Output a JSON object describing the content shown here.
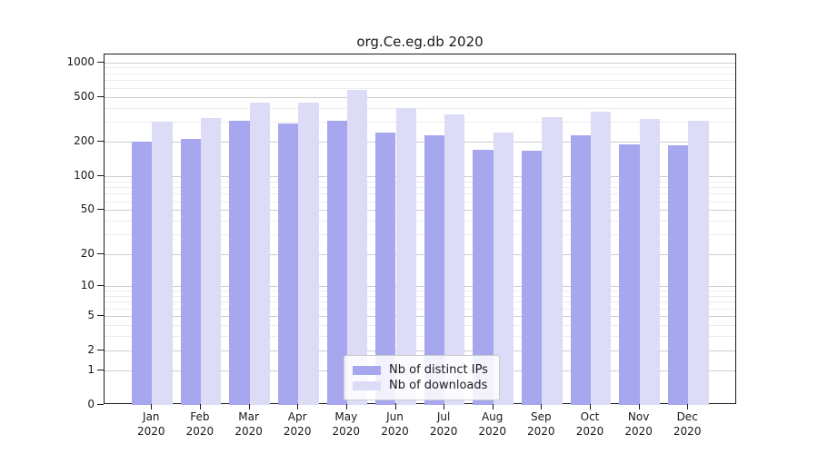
{
  "chart_data": {
    "type": "bar",
    "title": "org.Ce.eg.db 2020",
    "categories": [
      "Jan 2020",
      "Feb 2020",
      "Mar 2020",
      "Apr 2020",
      "May 2020",
      "Jun 2020",
      "Jul 2020",
      "Aug 2020",
      "Sep 2020",
      "Oct 2020",
      "Nov 2020",
      "Dec 2020"
    ],
    "series": [
      {
        "name": "Nb of distinct IPs",
        "color": "#a7a7f0",
        "values": [
          200,
          213,
          308,
          291,
          309,
          244,
          229,
          171,
          167,
          228,
          191,
          186
        ]
      },
      {
        "name": "Nb of downloads",
        "color": "#dcdcf7",
        "values": [
          300,
          326,
          443,
          443,
          576,
          401,
          349,
          242,
          328,
          367,
          319,
          309
        ]
      }
    ],
    "y_scale": "log1p",
    "ylim": [
      0,
      1172
    ],
    "y_ticks": [
      0,
      1,
      2,
      5,
      10,
      20,
      50,
      100,
      200,
      500,
      1000
    ],
    "y_minor_gridlines": [
      3,
      4,
      6,
      7,
      8,
      9,
      30,
      40,
      60,
      70,
      80,
      90,
      300,
      400,
      600,
      700,
      800,
      900
    ],
    "grid": true,
    "legend_position": "lower center"
  },
  "style": {
    "major_grid_color": "#cdcdcd",
    "minor_grid_color": "#ececec",
    "axis_color": "#1a1a1a",
    "text_color": "#1a1a1a",
    "plot_background": "#ffffff"
  }
}
